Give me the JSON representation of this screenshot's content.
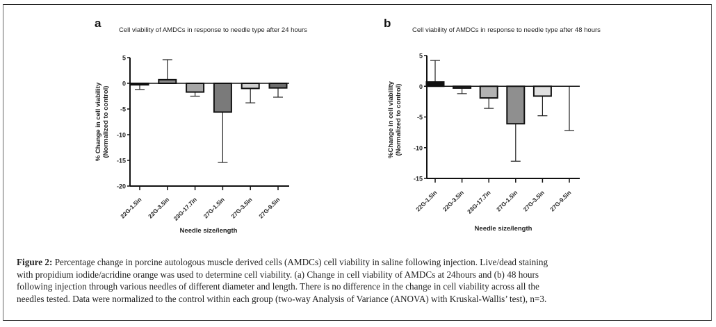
{
  "figure": {
    "caption_label": "Figure 2:",
    "caption_lines": [
      " Percentage change in porcine autologous muscle derived cells (AMDCs) cell viability in saline following injection. Live/dead staining",
      "with propidium iodide/acridine orange was used to determine cell viability. (a) Change in cell viability of AMDCs at 24hours and (b) 48 hours",
      "following injection through various needles of different diameter and length. There is no difference in the change in cell viability across all the",
      "needles tested. Data were normalized to the control within each group (two-way Analysis of Variance (ANOVA) with Kruskal-Wallis’ test), n=3."
    ]
  },
  "chart_data": [
    {
      "panel": "a",
      "type": "bar",
      "title": "Cell viability of AMDCs in response to needle type after 24 hours",
      "xlabel": "Needle size/length",
      "ylabel": "% Change in cell viability",
      "ylabel2": "(Normalized to control)",
      "categories": [
        "22G-1.5in",
        "22G-3.5in",
        "23G-17.7in",
        "27G-1.5in",
        "27G-3.5in",
        "27G-9.5in"
      ],
      "values": [
        -0.3,
        0.7,
        -1.7,
        -5.6,
        -1.0,
        -0.9
      ],
      "error_ends": [
        -1.2,
        4.6,
        -2.5,
        -15.4,
        -3.8,
        -2.7
      ],
      "fills": [
        "#111111",
        "#8a8a8a",
        "#a6a6a6",
        "#7a7a7a",
        "#cfcfcf",
        "#6e6e6e"
      ],
      "ylim": [
        -20,
        5
      ],
      "yticks": [
        5,
        0,
        -5,
        -10,
        -15,
        -20
      ],
      "grid": false,
      "legend": "none"
    },
    {
      "panel": "b",
      "type": "bar",
      "title": "Cell viability of AMDCs in response to needle type after 48 hours",
      "xlabel": "Needle size/length",
      "ylabel": "%Change in cell viability",
      "ylabel2": "(Normalized to control)",
      "categories": [
        "22G-1.5in",
        "22G-3.5in",
        "23G-17.7in",
        "27G-1.5in",
        "27G-3.5in",
        "27G-9.5in"
      ],
      "values": [
        0.7,
        -0.3,
        -1.9,
        -6.1,
        -1.6,
        0.0
      ],
      "error_ends": [
        4.2,
        -1.2,
        -3.6,
        -12.2,
        -4.8,
        -7.2
      ],
      "fills": [
        "#111111",
        "#333333",
        "#b3b3b3",
        "#8f8f8f",
        "#e0e0e0",
        "#ffffff"
      ],
      "ylim": [
        -15,
        5
      ],
      "yticks": [
        5,
        0,
        -5,
        -10,
        -15
      ],
      "grid": false,
      "legend": "none"
    }
  ]
}
